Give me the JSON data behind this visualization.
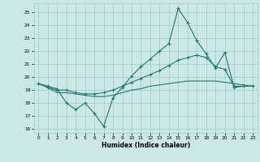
{
  "xlabel": "Humidex (Indice chaleur)",
  "x": [
    0,
    1,
    2,
    3,
    4,
    5,
    6,
    7,
    8,
    9,
    10,
    11,
    12,
    13,
    14,
    15,
    16,
    17,
    18,
    19,
    20,
    21,
    22,
    23
  ],
  "line_max": [
    19.5,
    19.3,
    19.1,
    18.0,
    17.5,
    18.0,
    17.2,
    16.2,
    18.4,
    19.2,
    20.1,
    20.8,
    21.4,
    22.0,
    22.6,
    25.3,
    24.2,
    22.8,
    21.8,
    20.7,
    21.9,
    19.2,
    19.3,
    19.3
  ],
  "line_mid": [
    19.5,
    19.2,
    19.0,
    19.0,
    18.8,
    18.7,
    18.7,
    18.8,
    19.0,
    19.3,
    19.6,
    19.9,
    20.2,
    20.5,
    20.9,
    21.3,
    21.5,
    21.7,
    21.5,
    20.8,
    20.6,
    19.3,
    19.3,
    19.3
  ],
  "line_min": [
    19.5,
    19.2,
    18.8,
    18.8,
    18.7,
    18.6,
    18.5,
    18.5,
    18.6,
    18.8,
    19.0,
    19.1,
    19.3,
    19.4,
    19.5,
    19.6,
    19.7,
    19.7,
    19.7,
    19.7,
    19.6,
    19.5,
    19.4,
    19.3
  ],
  "line_color": "#1a7a6e",
  "bg_color": "#cce8e6",
  "grid_color": "#99ccc8",
  "ylim": [
    15.7,
    25.7
  ],
  "yticks": [
    16,
    17,
    18,
    19,
    20,
    21,
    22,
    23,
    24,
    25
  ],
  "xticks": [
    0,
    1,
    2,
    3,
    4,
    5,
    6,
    7,
    8,
    9,
    10,
    11,
    12,
    13,
    14,
    15,
    16,
    17,
    18,
    19,
    20,
    21,
    22,
    23
  ]
}
